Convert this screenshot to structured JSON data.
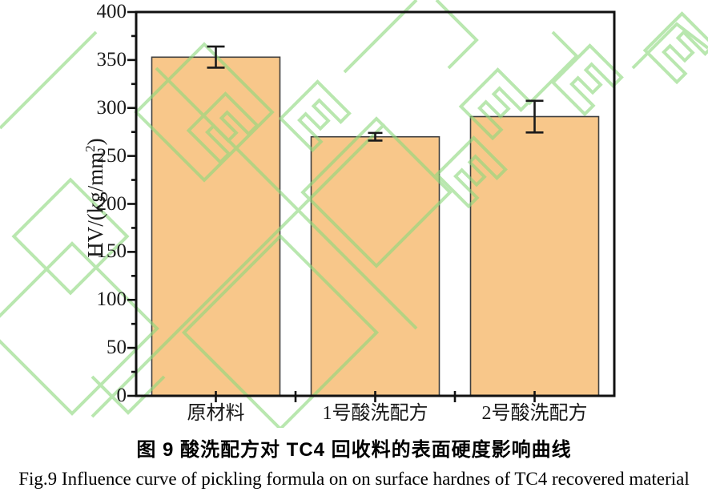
{
  "figure": {
    "caption_cn": "图 9 酸洗配方对 TC4 回收料的表面硬度影响曲线",
    "caption_en": "Fig.9 Influence curve of pickling formula on on surface hardnes of TC4 recovered material"
  },
  "chart_data": {
    "type": "bar",
    "title": "",
    "categories": [
      "原材料",
      "1号酸洗配方",
      "2号酸洗配方"
    ],
    "values": [
      353,
      270,
      291
    ],
    "errors": [
      11,
      4,
      16.5
    ],
    "xlabel": "",
    "ylabel": "HV/(kg/mm2)",
    "ylabel_main": "HV/(kg/mm",
    "ylabel_sup": "2",
    "ylabel_end": ")",
    "ylim": [
      0,
      400
    ],
    "ytick_step": 50,
    "yminor_step": 25,
    "grid": "off",
    "legend": "none",
    "frame": "box"
  },
  "colors": {
    "bar_fill": "#F8C78A",
    "bar_border": "#3F3F3F",
    "axis": "#111111",
    "error_bar": "#1a1a1a",
    "watermark": "#8FD97F"
  }
}
